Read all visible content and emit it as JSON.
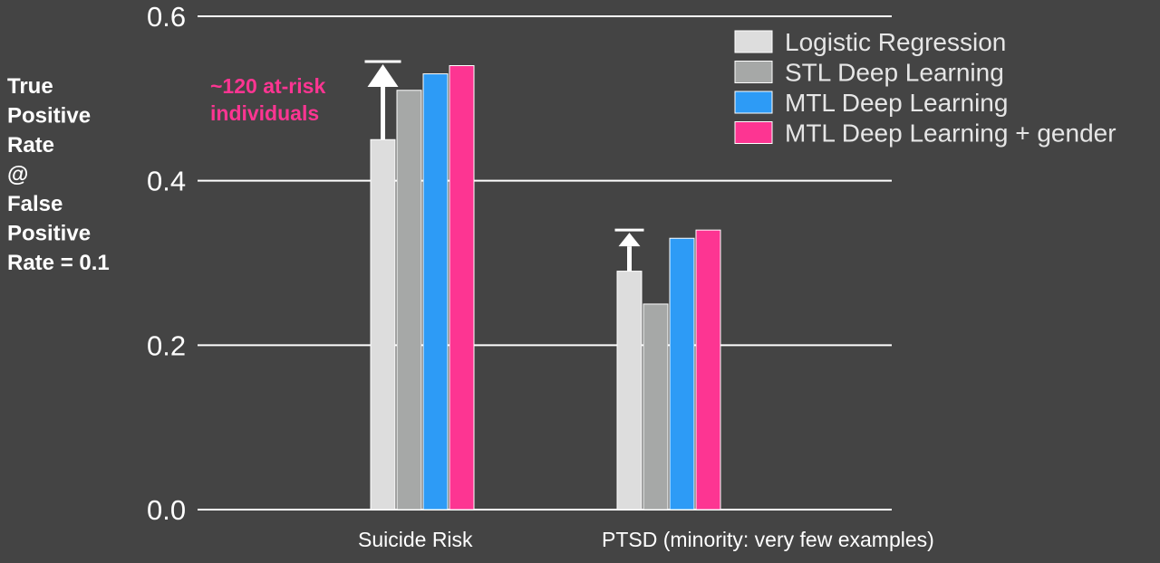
{
  "chart_data": {
    "type": "bar",
    "categories": [
      "Suicide Risk",
      "PTSD  (minority: very few examples)"
    ],
    "series": [
      {
        "name": "Logistic Regression",
        "color": "#dddddd",
        "values": [
          0.45,
          0.29
        ]
      },
      {
        "name": "STL Deep Learning",
        "color": "#a6a8a7",
        "values": [
          0.51,
          0.25
        ]
      },
      {
        "name": "MTL Deep Learning",
        "color": "#2d9bf6",
        "values": [
          0.53,
          0.33
        ]
      },
      {
        "name": "MTL Deep Learning + gender",
        "color": "#fd3592",
        "values": [
          0.54,
          0.34
        ]
      }
    ],
    "ylabel_lines": [
      "True",
      "Positive",
      "Rate",
      "@",
      "False",
      "Positive",
      "Rate = 0.1"
    ],
    "ylim": [
      0,
      0.6
    ],
    "yticks": [
      "0.0",
      "0.2",
      "0.4",
      "0.6"
    ],
    "grid": true,
    "legend_position": "top-right",
    "annotation": {
      "lines": [
        "~120 at-risk",
        "individuals"
      ],
      "color": "#fd3592"
    },
    "improvement_arrows": [
      {
        "category": 0,
        "from": 0.45,
        "to": 0.545
      },
      {
        "category": 1,
        "from": 0.29,
        "to": 0.34
      }
    ]
  }
}
